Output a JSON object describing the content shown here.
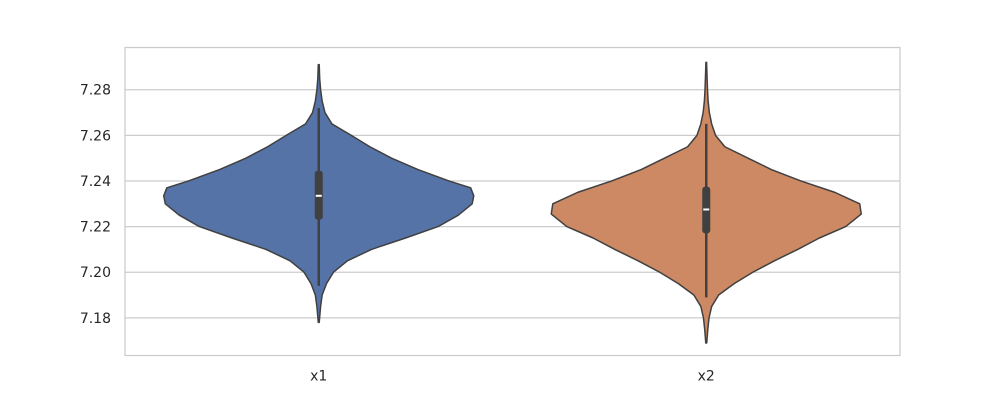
{
  "chart_data": {
    "type": "violin",
    "title": "",
    "xlabel": "",
    "ylabel": "",
    "grid": true,
    "categories": [
      "x1",
      "x2"
    ],
    "ylim": [
      7.1635,
      7.2985
    ],
    "yticks": [
      7.18,
      7.2,
      7.22,
      7.24,
      7.26,
      7.28
    ],
    "ytick_labels": [
      "7.18",
      "7.20",
      "7.22",
      "7.24",
      "7.26",
      "7.28"
    ],
    "series": [
      {
        "category": "x1",
        "color": "#5673a7",
        "min": 7.178,
        "q1": 7.223,
        "median": 7.2335,
        "q3": 7.2445,
        "max": 7.291,
        "whisker_low": 7.194,
        "whisker_high": 7.272,
        "density": [
          [
            7.178,
            0.003
          ],
          [
            7.185,
            0.012
          ],
          [
            7.19,
            0.022
          ],
          [
            7.195,
            0.05
          ],
          [
            7.2,
            0.095
          ],
          [
            7.205,
            0.185
          ],
          [
            7.21,
            0.34
          ],
          [
            7.215,
            0.56
          ],
          [
            7.22,
            0.77
          ],
          [
            7.225,
            0.9
          ],
          [
            7.23,
            0.99
          ],
          [
            7.2335,
            1.0
          ],
          [
            7.237,
            0.98
          ],
          [
            7.24,
            0.84
          ],
          [
            7.245,
            0.64
          ],
          [
            7.25,
            0.47
          ],
          [
            7.255,
            0.33
          ],
          [
            7.26,
            0.21
          ],
          [
            7.265,
            0.085
          ],
          [
            7.27,
            0.04
          ],
          [
            7.275,
            0.022
          ],
          [
            7.28,
            0.012
          ],
          [
            7.285,
            0.006
          ],
          [
            7.291,
            0.003
          ]
        ]
      },
      {
        "category": "x2",
        "color": "#cc8963",
        "min": 7.169,
        "q1": 7.217,
        "median": 7.2275,
        "q3": 7.2375,
        "max": 7.292,
        "whisker_low": 7.189,
        "whisker_high": 7.265,
        "density": [
          [
            7.169,
            0.003
          ],
          [
            7.175,
            0.01
          ],
          [
            7.18,
            0.018
          ],
          [
            7.185,
            0.035
          ],
          [
            7.19,
            0.08
          ],
          [
            7.195,
            0.18
          ],
          [
            7.2,
            0.3
          ],
          [
            7.205,
            0.44
          ],
          [
            7.21,
            0.59
          ],
          [
            7.215,
            0.73
          ],
          [
            7.22,
            0.9
          ],
          [
            7.2255,
            1.0
          ],
          [
            7.23,
            0.99
          ],
          [
            7.235,
            0.83
          ],
          [
            7.24,
            0.61
          ],
          [
            7.245,
            0.42
          ],
          [
            7.25,
            0.27
          ],
          [
            7.255,
            0.12
          ],
          [
            7.26,
            0.06
          ],
          [
            7.265,
            0.035
          ],
          [
            7.27,
            0.02
          ],
          [
            7.275,
            0.012
          ],
          [
            7.28,
            0.008
          ],
          [
            7.286,
            0.005
          ],
          [
            7.292,
            0.002
          ]
        ]
      }
    ]
  }
}
